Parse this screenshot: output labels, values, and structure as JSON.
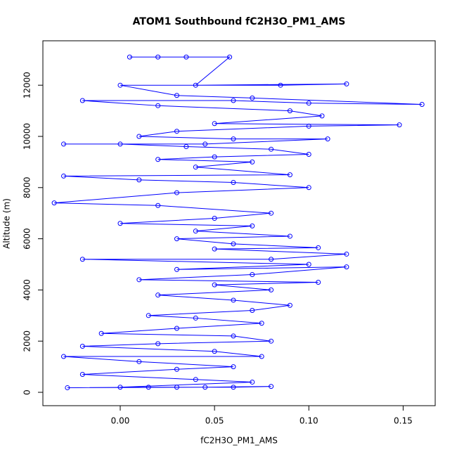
{
  "chart_data": {
    "type": "scatter-line",
    "title": "ATOM1 Southbound fC2H3O_PM1_AMS",
    "x_label": "fC2H3O_PM1_AMS",
    "y_label": "Altitude (m)",
    "color": "#0000ff",
    "xlim": [
      -0.041,
      0.167
    ],
    "ylim": [
      -522,
      13736
    ],
    "xticks": [
      {
        "value": 0,
        "label": "0.00"
      },
      {
        "value": 0.05,
        "label": "0.05"
      },
      {
        "value": 0.1,
        "label": "0.10"
      },
      {
        "value": 0.15,
        "label": "0.15"
      }
    ],
    "yticks": [
      0,
      2000,
      4000,
      6000,
      8000,
      10000,
      12000
    ],
    "x": [
      0.005,
      0.02,
      0.035,
      0.058,
      0.04,
      0.12,
      0.085,
      0.0,
      0.03,
      0.07,
      0.16,
      0.1,
      0.06,
      -0.02,
      0.02,
      0.09,
      0.107,
      0.05,
      0.148,
      0.1,
      0.03,
      0.01,
      0.06,
      0.11,
      0.045,
      -0.03,
      0.0,
      0.035,
      0.08,
      0.1,
      0.05,
      0.02,
      0.07,
      0.04,
      0.09,
      -0.03,
      0.01,
      0.06,
      0.1,
      0.03,
      -0.035,
      0.02,
      0.08,
      0.05,
      0.0,
      0.07,
      0.04,
      0.09,
      0.03,
      0.06,
      0.105,
      0.05,
      0.12,
      0.08,
      -0.02,
      0.1,
      0.03,
      0.12,
      0.07,
      0.01,
      0.105,
      0.05,
      0.08,
      0.02,
      0.06,
      0.09,
      0.07,
      0.015,
      0.04,
      0.075,
      0.03,
      -0.01,
      0.06,
      0.08,
      0.02,
      -0.02,
      0.05,
      0.075,
      -0.03,
      0.01,
      0.06,
      0.03,
      -0.02,
      0.04,
      0.07,
      0.0,
      0.03,
      0.06,
      0.08,
      0.045,
      -0.028,
      0.015
    ],
    "values": [
      13100,
      13100,
      13100,
      13100,
      12000,
      12050,
      12000,
      12000,
      11600,
      11500,
      11250,
      11300,
      11400,
      11400,
      11200,
      11000,
      10800,
      10500,
      10450,
      10400,
      10200,
      10000,
      9900,
      9900,
      9700,
      9700,
      9700,
      9600,
      9500,
      9300,
      9200,
      9100,
      9000,
      8800,
      8500,
      8450,
      8300,
      8200,
      8000,
      7800,
      7400,
      7300,
      7000,
      6800,
      6600,
      6500,
      6300,
      6100,
      6000,
      5800,
      5650,
      5600,
      5400,
      5200,
      5200,
      5000,
      4800,
      4900,
      4600,
      4400,
      4300,
      4200,
      4000,
      3800,
      3600,
      3400,
      3200,
      3000,
      2900,
      2700,
      2500,
      2300,
      2200,
      2000,
      1900,
      1800,
      1600,
      1400,
      1400,
      1200,
      1000,
      900,
      700,
      500,
      400,
      200,
      200,
      200,
      230,
      200,
      180,
      200
    ]
  }
}
